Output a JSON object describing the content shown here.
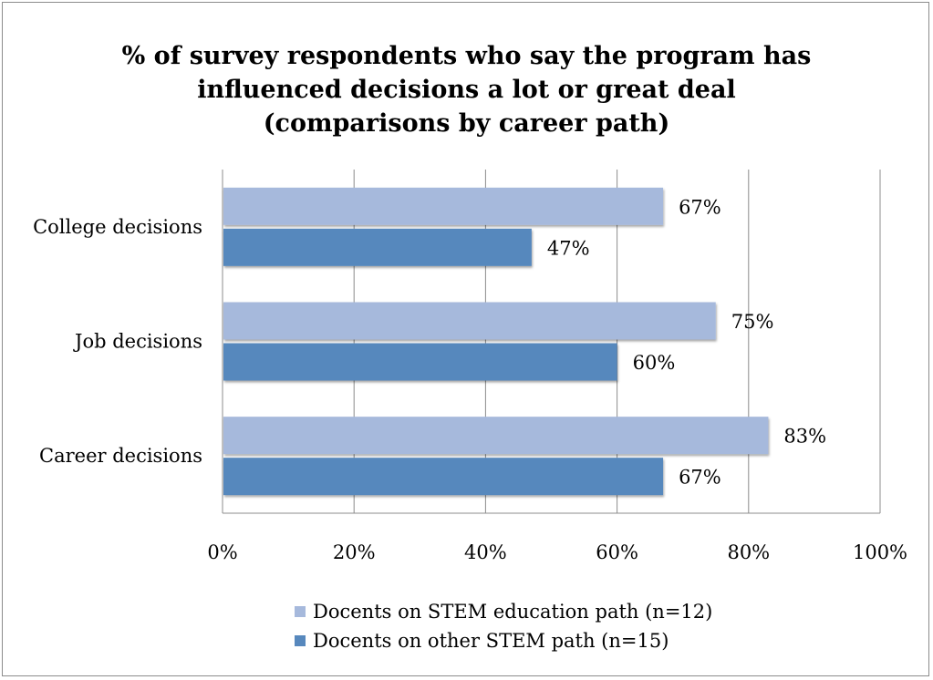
{
  "chart_data": {
    "type": "bar",
    "orientation": "horizontal",
    "title_lines": [
      "% of survey respondents who say the program has",
      "influenced decisions a lot or great deal",
      "(comparisons by career path)"
    ],
    "categories": [
      "College decisions",
      "Job decisions",
      "Career decisions"
    ],
    "series": [
      {
        "name": "Docents on STEM education path (n=12)",
        "values": [
          67,
          75,
          83
        ],
        "labels": [
          "67%",
          "75%",
          "83%"
        ],
        "color": "#a6b9dc"
      },
      {
        "name": "Docents on other STEM path (n=15)",
        "values": [
          47,
          60,
          67
        ],
        "labels": [
          "47%",
          "60%",
          "67%"
        ],
        "color": "#5788bd"
      }
    ],
    "xlim": [
      0,
      100
    ],
    "xticks": [
      0,
      20,
      40,
      60,
      80,
      100
    ],
    "xtick_labels": [
      "0%",
      "20%",
      "40%",
      "60%",
      "80%",
      "100%"
    ],
    "grid": true,
    "legend_position": "bottom"
  }
}
